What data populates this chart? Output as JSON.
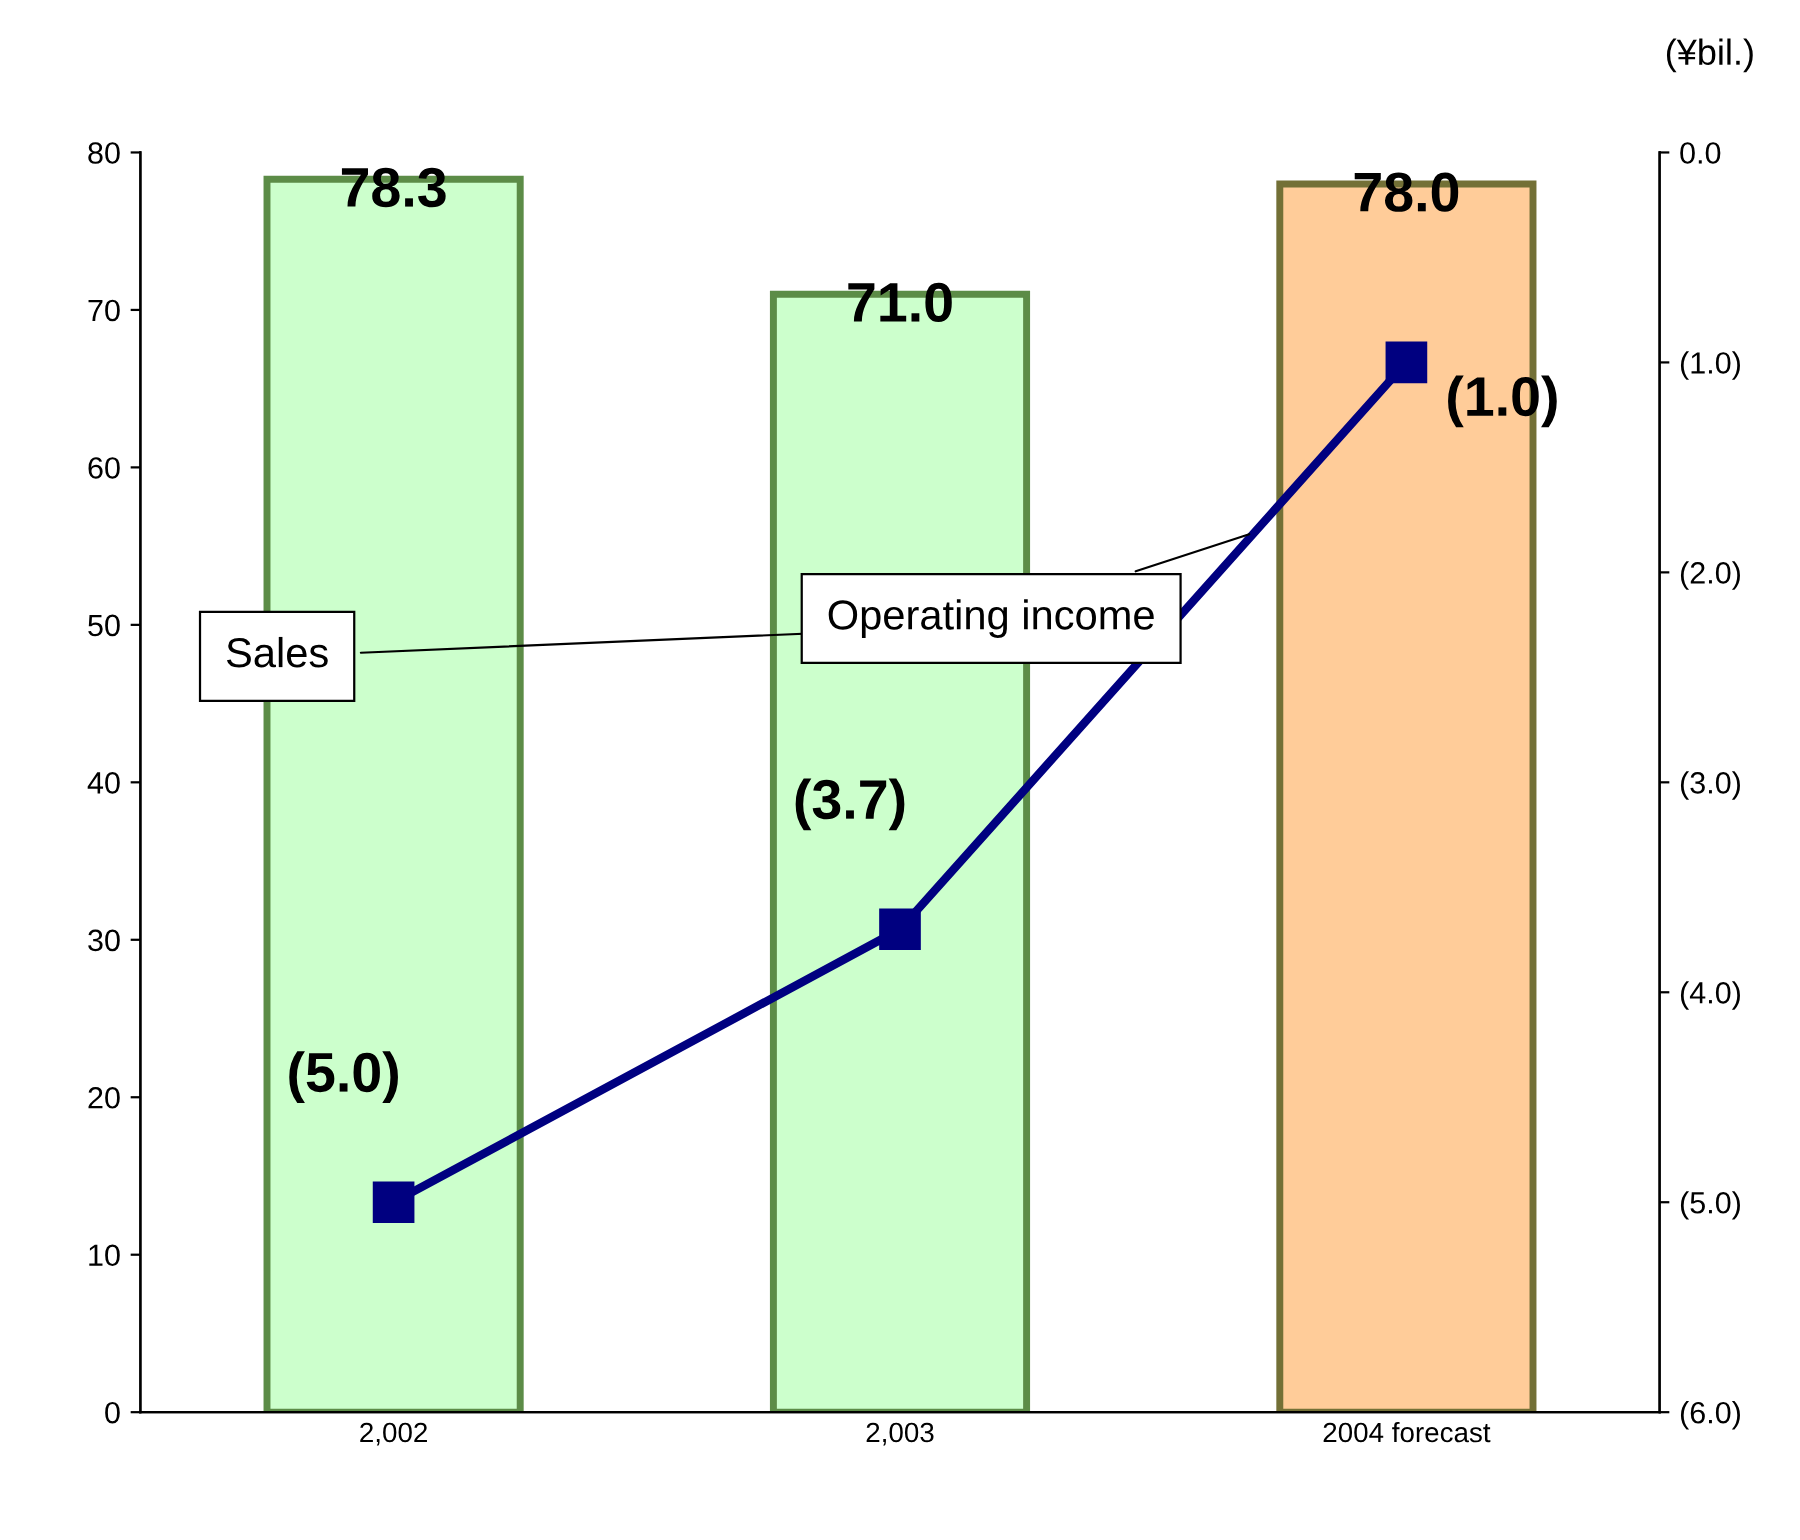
{
  "chart_data": {
    "type": "bar",
    "categories": [
      "2,002",
      "2,003",
      "2004 forecast"
    ],
    "series": [
      {
        "name": "Sales",
        "colors": [
          "#ccffcc",
          "#ccffcc",
          "#ffcc99"
        ],
        "values": [
          78.3,
          71.0,
          78.0
        ],
        "value_labels": [
          "78.3",
          "71.0",
          "78.0"
        ]
      },
      {
        "name": "Operating income",
        "type": "line",
        "axis": "y2",
        "color": "#000080",
        "values": [
          -5.0,
          -3.7,
          -1.0
        ],
        "value_labels": [
          "(5.0)",
          "(3.7)",
          "(1.0)"
        ]
      }
    ],
    "ylim": [
      0,
      80
    ],
    "yticks": [
      0,
      10,
      20,
      30,
      40,
      50,
      60,
      70,
      80
    ],
    "y2lim": [
      -6,
      0
    ],
    "y2ticks": [
      {
        "value": 0,
        "label": "0.0"
      },
      {
        "value": -1,
        "label": "(1.0)"
      },
      {
        "value": -2,
        "label": "(2.0)"
      },
      {
        "value": -3,
        "label": "(3.0)"
      },
      {
        "value": -4,
        "label": "(4.0)"
      },
      {
        "value": -5,
        "label": "(5.0)"
      },
      {
        "value": -6,
        "label": "(6.0)"
      }
    ],
    "annotations": [
      "(¥bil.)"
    ],
    "marker": "square",
    "line_style": "solid",
    "grid": false,
    "legend": false
  }
}
